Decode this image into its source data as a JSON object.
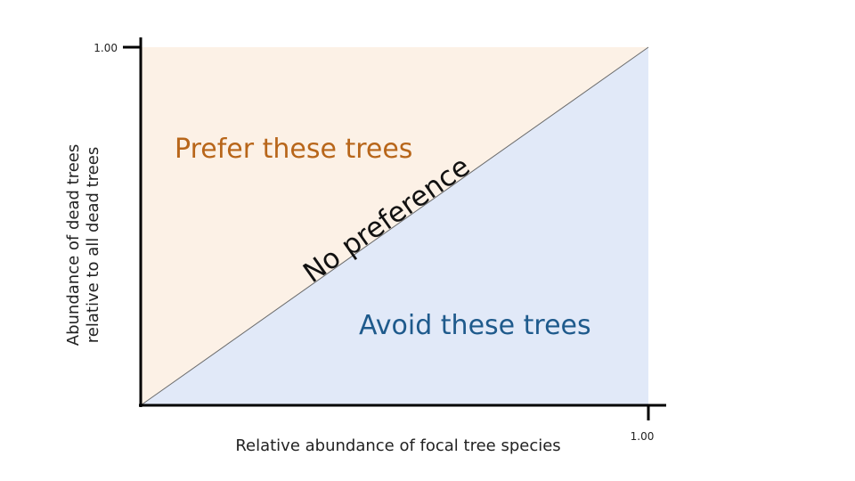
{
  "diagram": {
    "y_axis_label_line1": "Abundance of dead trees",
    "y_axis_label_line2": "relative to all dead trees",
    "x_axis_label": "Relative abundance of focal tree species",
    "y_tick": "1.00",
    "x_tick": "1.00",
    "upper_region_label": "Prefer these trees",
    "lower_region_label": "Avoid these trees",
    "diagonal_label": "No preference"
  },
  "colors": {
    "upper_fill": "#fcf1e6",
    "lower_fill": "#e1e9f8",
    "upper_text": "#b8661a",
    "lower_text": "#1e5a8c",
    "axis": "#000000",
    "diagonal_line": "#6b6b6b"
  }
}
